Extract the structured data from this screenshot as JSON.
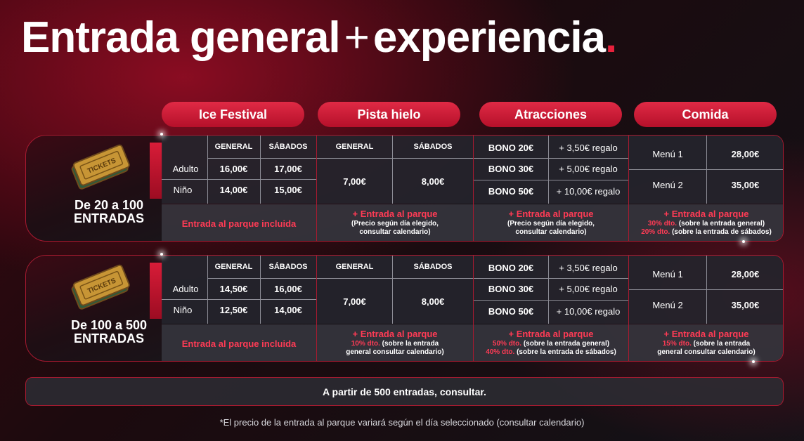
{
  "title": {
    "main": "Entrada general",
    "plus": "+",
    "rest": "experiencia",
    "dot": "."
  },
  "columns": [
    "Ice Festival",
    "Pista hielo",
    "Atracciones",
    "Comida"
  ],
  "ticket_logo_text": "TICKETS",
  "tiers": [
    {
      "label_line1": "De 20 a 100",
      "label_line2": "ENTRADAS",
      "ice": {
        "h_general": "GENERAL",
        "h_sabados": "SÁBADOS",
        "r1": "Adulto",
        "r1_gen": "16,00€",
        "r1_sab": "17,00€",
        "r2": "Niño",
        "r2_gen": "14,00€",
        "r2_sab": "15,00€",
        "note": "Entrada al parque incluida"
      },
      "pista": {
        "h_general": "GENERAL",
        "h_sabados": "SÁBADOS",
        "gen": "7,00€",
        "sab": "8,00€",
        "note_title": "+ Entrada al parque",
        "note_l1": "(Precio según día elegido,",
        "note_l2": "consultar calendario)"
      },
      "atr": {
        "b1": "BONO 20€",
        "g1": "+ 3,50€ regalo",
        "b2": "BONO 30€",
        "g2": "+ 5,00€ regalo",
        "b3": "BONO 50€",
        "g3": "+ 10,00€ regalo",
        "note_title": "+ Entrada al parque",
        "note_l1": "(Precio según día elegido,",
        "note_l2": "consultar calendario)"
      },
      "comida": {
        "m1": "Menú 1",
        "p1": "28,00€",
        "m2": "Menú 2",
        "p2": "35,00€",
        "note_title": "+ Entrada al parque",
        "d1": "30% dto.",
        "d1_txt": "(sobre la entrada general)",
        "d2": "20% dto.",
        "d2_txt": "(sobre la entrada de sábados)"
      }
    },
    {
      "label_line1": "De 100 a 500",
      "label_line2": "ENTRADAS",
      "ice": {
        "h_general": "GENERAL",
        "h_sabados": "SÁBADOS",
        "r1": "Adulto",
        "r1_gen": "14,50€",
        "r1_sab": "16,00€",
        "r2": "Niño",
        "r2_gen": "12,50€",
        "r2_sab": "14,00€",
        "note": "Entrada al parque incluida"
      },
      "pista": {
        "h_general": "GENERAL",
        "h_sabados": "SÁBADOS",
        "gen": "7,00€",
        "sab": "8,00€",
        "note_title": "+ Entrada al parque",
        "d1": "10% dto.",
        "d1_txt": "(sobre la entrada",
        "note_l2": "general consultar calendario)"
      },
      "atr": {
        "b1": "BONO 20€",
        "g1": "+ 3,50€ regalo",
        "b2": "BONO 30€",
        "g2": "+ 5,00€ regalo",
        "b3": "BONO 50€",
        "g3": "+ 10,00€ regalo",
        "note_title": "+ Entrada al parque",
        "d1": "50% dto.",
        "d1_txt": "(sobre la entrada general)",
        "d2": "40% dto.",
        "d2_txt": "(sobre la entrada de sábados)"
      },
      "comida": {
        "m1": "Menú 1",
        "p1": "28,00€",
        "m2": "Menú 2",
        "p2": "35,00€",
        "note_title": "+ Entrada al parque",
        "d1": "15% dto.",
        "d1_txt": "(sobre la entrada",
        "note_l2": "general consultar calendario)"
      }
    }
  ],
  "bottom_bar": "A partir de 500 entradas, consultar.",
  "footnote": "*El precio de la entrada al parque variará según el día seleccionado (consultar calendario)",
  "colors": {
    "accent": "#e8213c",
    "red_text": "#ff3b55",
    "border": "#a71a30"
  }
}
